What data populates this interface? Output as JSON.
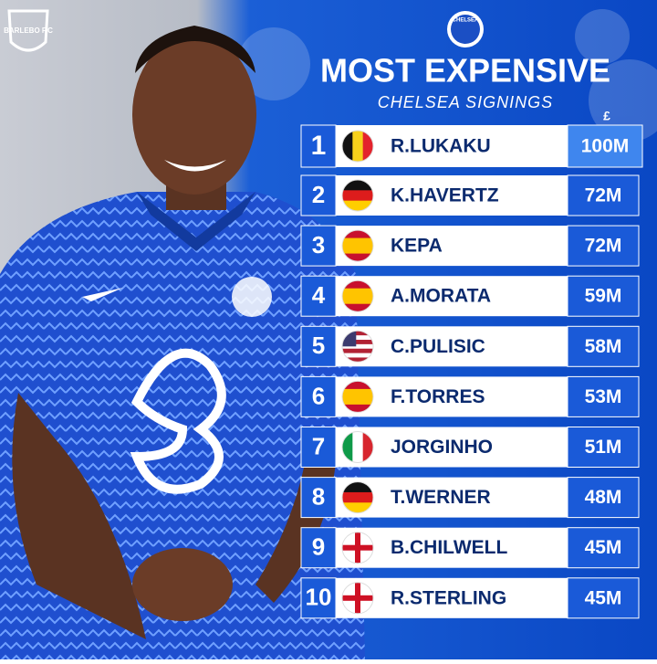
{
  "logo": "BARLEBO F.C",
  "crest": "CHELSEA",
  "title": "MOST EXPENSIVE",
  "subtitle": "CHELSEA SIGNINGS",
  "currency": "£",
  "rows": [
    {
      "rank": 1,
      "name": "R.LUKAKU",
      "fee": "100M"
    },
    {
      "rank": 2,
      "name": "K.HAVERTZ",
      "fee": "72M"
    },
    {
      "rank": 3,
      "name": "KEPA",
      "fee": "72M"
    },
    {
      "rank": 4,
      "name": "A.MORATA",
      "fee": "59M"
    },
    {
      "rank": 5,
      "name": "C.PULISIC",
      "fee": "58M"
    },
    {
      "rank": 6,
      "name": "F.TORRES",
      "fee": "53M"
    },
    {
      "rank": 7,
      "name": "JORGINHO",
      "fee": "51M"
    },
    {
      "rank": 8,
      "name": "T.WERNER",
      "fee": "48M"
    },
    {
      "rank": 9,
      "name": "B.CHILWELL",
      "fee": "45M"
    },
    {
      "rank": 10,
      "name": "R.STERLING",
      "fee": "45M"
    }
  ]
}
